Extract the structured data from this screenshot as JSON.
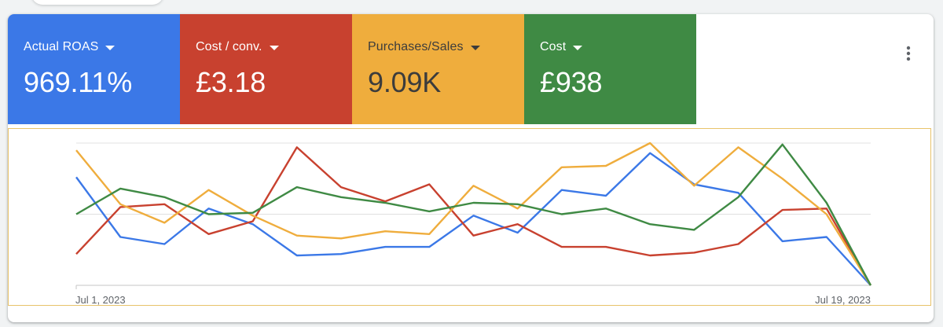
{
  "scorecards": [
    {
      "label": "Actual ROAS",
      "value": "969.11%",
      "color": "#3b78e7",
      "icon": "caret-down-icon"
    },
    {
      "label": "Cost / conv.",
      "value": "£3.18",
      "color": "#c8412f",
      "icon": "caret-down-icon"
    },
    {
      "label": "Purchases/Sales",
      "value": "9.09K",
      "color": "#efad3d",
      "icon": "caret-down-icon"
    },
    {
      "label": "Cost",
      "value": "£938",
      "color": "#3f8a44",
      "icon": "caret-down-icon"
    }
  ],
  "menu": {
    "icon": "more-vert-icon"
  },
  "chart_data": {
    "type": "line",
    "x_start_label": "Jul 1, 2023",
    "x_end_label": "Jul 19, 2023",
    "grid": true,
    "ylim": [
      0,
      1
    ],
    "series": [
      {
        "color": "#3b78e7",
        "values": [
          0.76,
          0.34,
          0.29,
          0.54,
          0.43,
          0.21,
          0.22,
          0.27,
          0.27,
          0.49,
          0.37,
          0.67,
          0.63,
          0.93,
          0.71,
          0.65,
          0.31,
          0.34,
          0.0
        ]
      },
      {
        "color": "#c8412f",
        "values": [
          0.22,
          0.55,
          0.57,
          0.36,
          0.45,
          0.97,
          0.69,
          0.59,
          0.71,
          0.35,
          0.43,
          0.27,
          0.27,
          0.21,
          0.23,
          0.29,
          0.53,
          0.54,
          0.0
        ]
      },
      {
        "color": "#efad3d",
        "values": [
          0.95,
          0.57,
          0.44,
          0.67,
          0.49,
          0.35,
          0.33,
          0.38,
          0.36,
          0.7,
          0.54,
          0.83,
          0.84,
          1.0,
          0.7,
          0.97,
          0.75,
          0.5,
          0.0
        ]
      },
      {
        "color": "#3f8a44",
        "values": [
          0.5,
          0.68,
          0.62,
          0.5,
          0.51,
          0.69,
          0.62,
          0.58,
          0.52,
          0.58,
          0.57,
          0.5,
          0.54,
          0.43,
          0.39,
          0.62,
          0.99,
          0.58,
          0.0
        ]
      }
    ]
  }
}
